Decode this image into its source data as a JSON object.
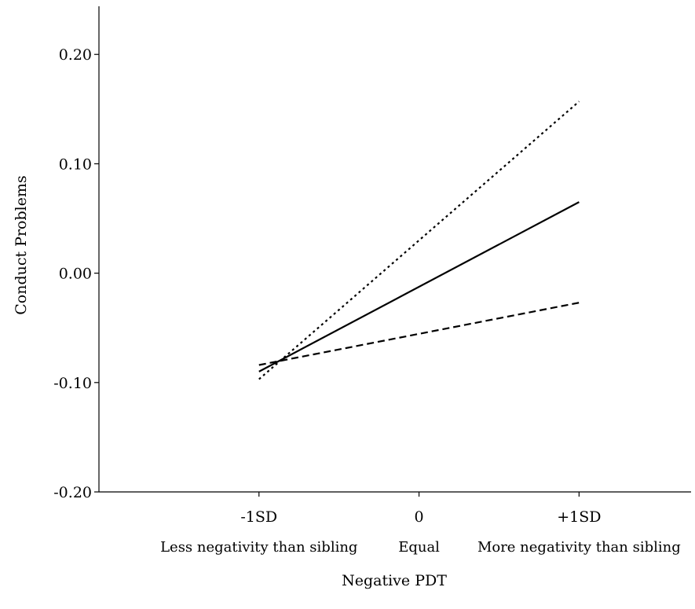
{
  "chart_data": {
    "type": "line",
    "title": "",
    "xlabel": "Negative PDT",
    "ylabel": "Conduct Problems",
    "x_ticks": [
      "-1SD",
      "0",
      "+1SD"
    ],
    "x_tick_values": [
      -1,
      0,
      1
    ],
    "x_sublabels": [
      "Less negativity than sibling",
      "Equal",
      "More negativity than sibling"
    ],
    "y_ticks": [
      "-0.20",
      "-0.10",
      "0.00",
      "0.10",
      "0.20"
    ],
    "y_tick_values": [
      -0.2,
      -0.1,
      0.0,
      0.1,
      0.2
    ],
    "xlim": [
      -2,
      1.7
    ],
    "ylim": [
      -0.2,
      0.244
    ],
    "grid": false,
    "legend": "none",
    "series": [
      {
        "x": [
          -1,
          1
        ],
        "values": [
          -0.097,
          0.157
        ],
        "dash": "3 4"
      },
      {
        "x": [
          -1,
          1
        ],
        "values": [
          -0.09,
          0.065
        ],
        "dash": ""
      },
      {
        "x": [
          -1,
          1
        ],
        "values": [
          -0.084,
          -0.027
        ],
        "dash": "9 5"
      }
    ]
  }
}
